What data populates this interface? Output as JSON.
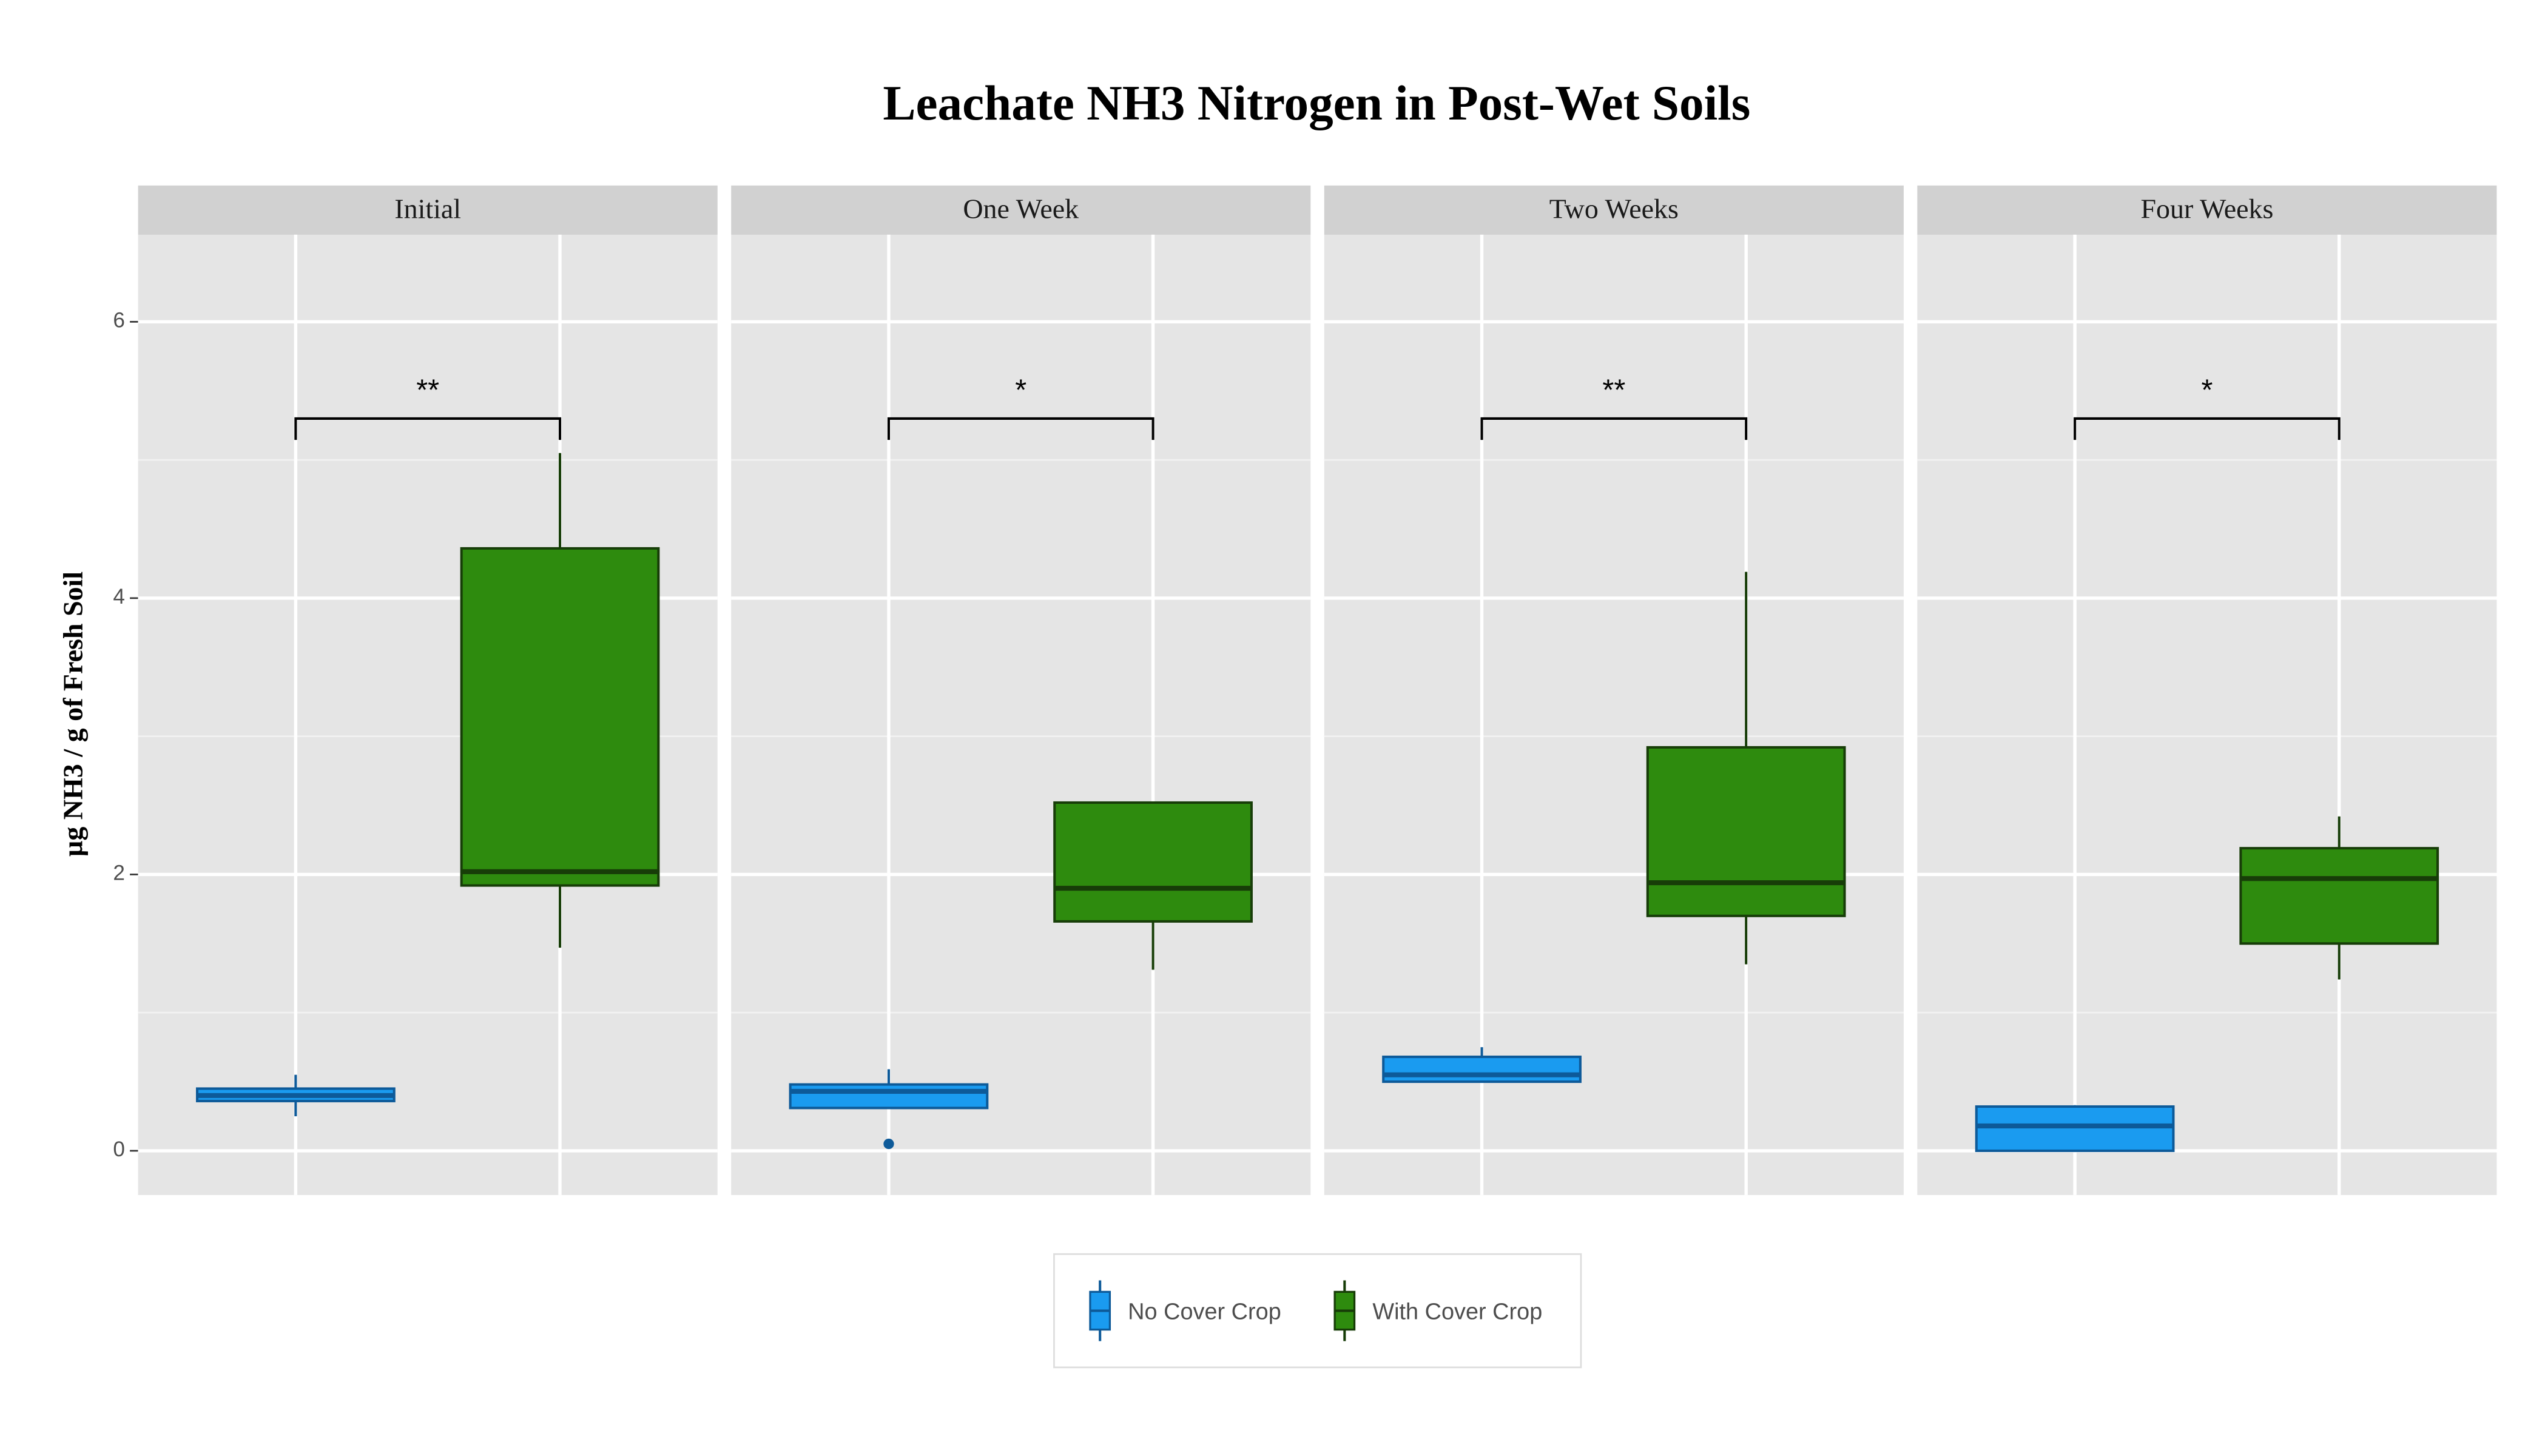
{
  "chart_data": {
    "type": "boxplot",
    "title": "Leachate NH3 Nitrogen in Post-Wet Soils",
    "y_label": "µg NH3 / g of Fresh Soil",
    "facets": [
      "Initial",
      "One Week",
      "Two Weeks",
      "Four Weeks"
    ],
    "annotations": [
      "**",
      "*",
      "**",
      "*"
    ],
    "ylim": [
      -0.32,
      6.63
    ],
    "yticks": [
      0,
      2,
      4,
      6
    ],
    "grid": true,
    "series": [
      {
        "name": "No Cover Crop",
        "color": "#1a9bf0",
        "stroke": "#0d5a99",
        "boxes": [
          {
            "low": 0.25,
            "q1": 0.36,
            "median": 0.4,
            "q3": 0.45,
            "high": 0.55
          },
          {
            "low": 0.31,
            "q1": 0.31,
            "median": 0.43,
            "q3": 0.48,
            "high": 0.59,
            "outliers": [
              0.05
            ]
          },
          {
            "low": 0.5,
            "q1": 0.5,
            "median": 0.55,
            "q3": 0.68,
            "high": 0.75
          },
          {
            "low": 0,
            "q1": 0,
            "median": 0.18,
            "q3": 0.32,
            "high": 0.33
          }
        ]
      },
      {
        "name": "With Cover Crop",
        "color": "#2e8b0e",
        "stroke": "#173d08",
        "boxes": [
          {
            "low": 1.47,
            "q1": 1.92,
            "median": 2.02,
            "q3": 4.36,
            "high": 5.05
          },
          {
            "low": 1.31,
            "q1": 1.66,
            "median": 1.9,
            "q3": 2.52,
            "high": 2.52
          },
          {
            "low": 1.35,
            "q1": 1.7,
            "median": 1.94,
            "q3": 2.92,
            "high": 4.19
          },
          {
            "low": 1.24,
            "q1": 1.5,
            "median": 1.97,
            "q3": 2.19,
            "high": 2.42
          }
        ]
      }
    ]
  }
}
